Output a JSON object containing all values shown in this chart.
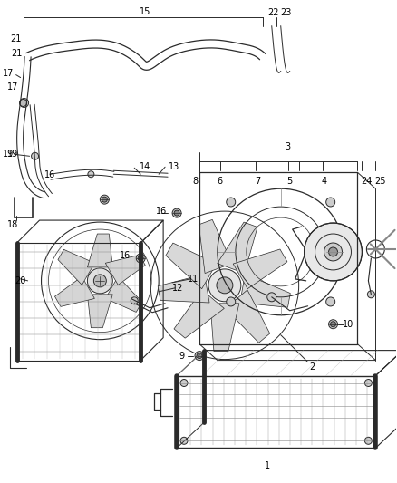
{
  "background_color": "#ffffff",
  "line_color": "#2a2a2a",
  "label_color": "#000000",
  "fig_width": 4.38,
  "fig_height": 5.33,
  "dpi": 100
}
